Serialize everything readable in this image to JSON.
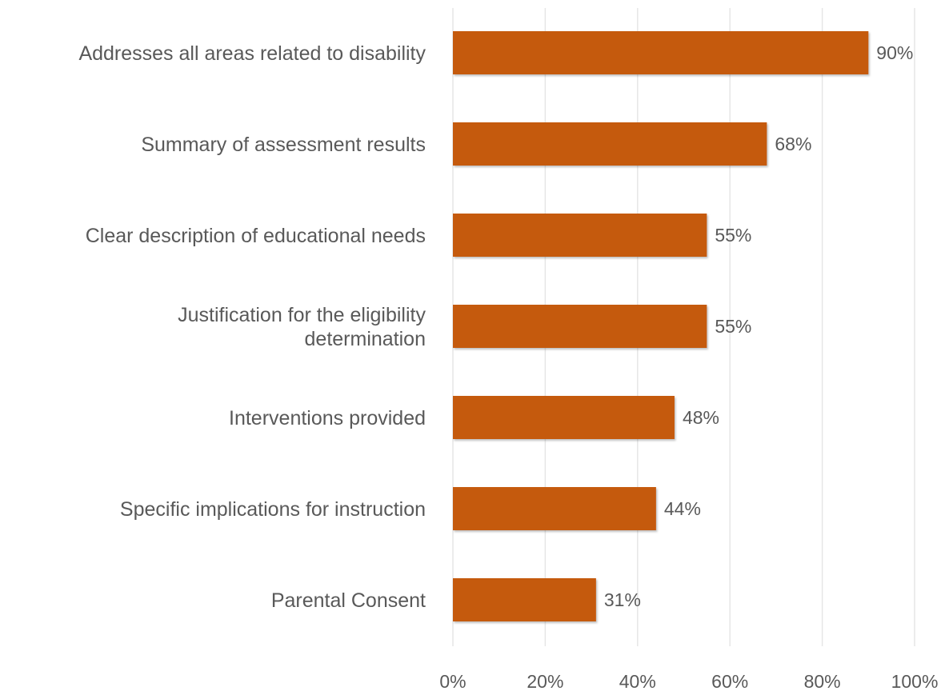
{
  "chart_data": {
    "type": "bar",
    "orientation": "horizontal",
    "title": "",
    "xlabel": "",
    "ylabel": "",
    "categories": [
      [
        "Addresses all areas related to disability"
      ],
      [
        "Summary of assessment results"
      ],
      [
        "Clear description of educational needs"
      ],
      [
        "Justification for the eligibility",
        "determination"
      ],
      [
        "Interventions provided"
      ],
      [
        "Specific implications for instruction"
      ],
      [
        "Parental Consent"
      ]
    ],
    "values": [
      90,
      68,
      55,
      55,
      48,
      44,
      31
    ],
    "value_labels": [
      "90%",
      "68%",
      "55%",
      "55%",
      "48%",
      "44%",
      "31%"
    ],
    "xlim": [
      0,
      100
    ],
    "x_ticks": [
      0,
      20,
      40,
      60,
      80,
      100
    ],
    "x_tick_labels": [
      "0%",
      "20%",
      "40%",
      "60%",
      "80%",
      "100%"
    ],
    "grid": true,
    "legend": "none",
    "bar_color": "#c55a11"
  }
}
